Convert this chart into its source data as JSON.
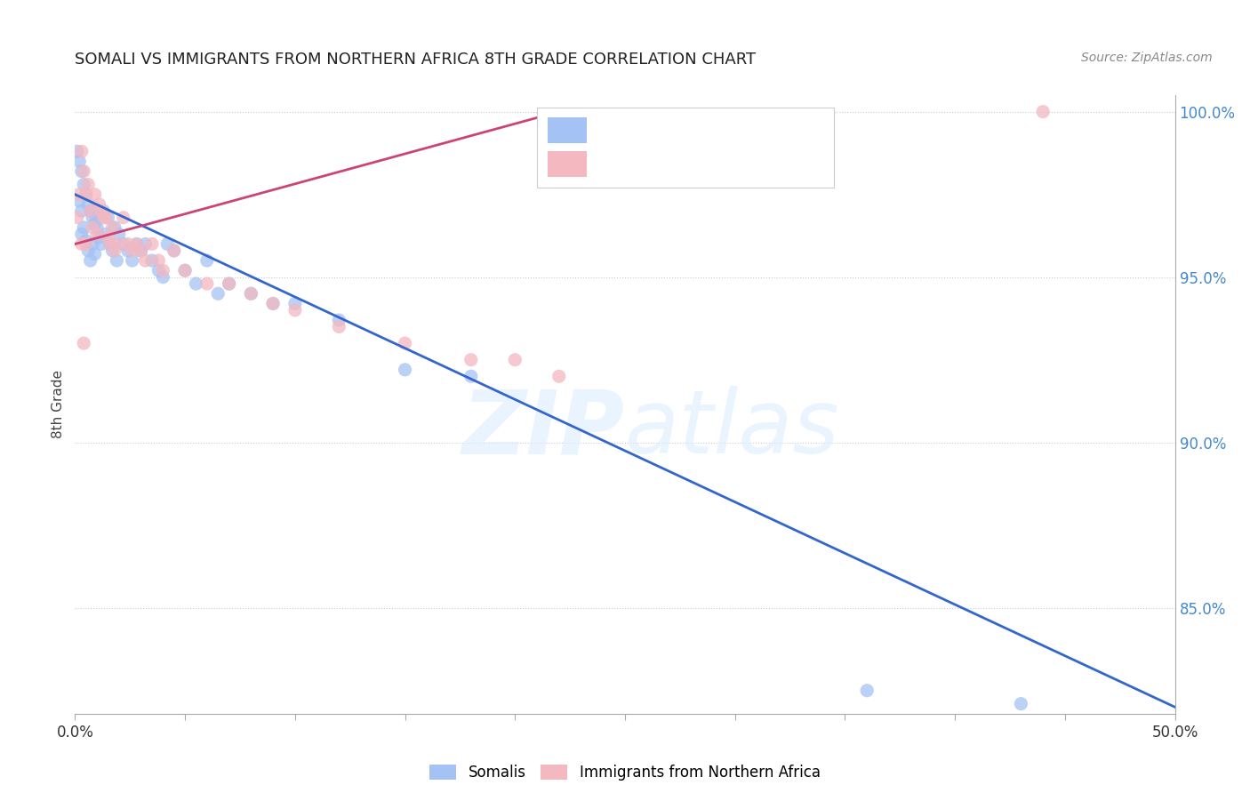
{
  "title": "SOMALI VS IMMIGRANTS FROM NORTHERN AFRICA 8TH GRADE CORRELATION CHART",
  "source": "Source: ZipAtlas.com",
  "ylabel": "8th Grade",
  "legend_labels": [
    "Somalis",
    "Immigrants from Northern Africa"
  ],
  "blue_color": "#a4c2f4",
  "pink_color": "#f4b8c1",
  "blue_line_color": "#3366cc",
  "pink_line_color": "#cc4477",
  "xlim": [
    0.0,
    0.5
  ],
  "ylim": [
    0.818,
    1.005
  ],
  "right_yticks": [
    1.0,
    0.95,
    0.9,
    0.85
  ],
  "right_ytick_labels": [
    "100.0%",
    "95.0%",
    "90.0%",
    "85.0%"
  ],
  "blue_scatter_x": [
    0.001,
    0.002,
    0.002,
    0.003,
    0.003,
    0.003,
    0.004,
    0.004,
    0.005,
    0.005,
    0.006,
    0.006,
    0.007,
    0.007,
    0.008,
    0.008,
    0.009,
    0.009,
    0.01,
    0.01,
    0.011,
    0.012,
    0.013,
    0.014,
    0.015,
    0.016,
    0.017,
    0.018,
    0.019,
    0.02,
    0.022,
    0.024,
    0.026,
    0.028,
    0.03,
    0.032,
    0.035,
    0.038,
    0.04,
    0.042,
    0.045,
    0.05,
    0.055,
    0.06,
    0.065,
    0.07,
    0.08,
    0.09,
    0.1,
    0.12,
    0.15,
    0.18,
    0.36,
    0.43
  ],
  "blue_scatter_y": [
    0.988,
    0.985,
    0.973,
    0.982,
    0.97,
    0.963,
    0.978,
    0.965,
    0.975,
    0.961,
    0.972,
    0.958,
    0.97,
    0.955,
    0.968,
    0.96,
    0.966,
    0.957,
    0.965,
    0.968,
    0.962,
    0.96,
    0.97,
    0.963,
    0.968,
    0.96,
    0.958,
    0.965,
    0.955,
    0.963,
    0.96,
    0.958,
    0.955,
    0.96,
    0.958,
    0.96,
    0.955,
    0.952,
    0.95,
    0.96,
    0.958,
    0.952,
    0.948,
    0.955,
    0.945,
    0.948,
    0.945,
    0.942,
    0.942,
    0.937,
    0.922,
    0.92,
    0.825,
    0.821
  ],
  "pink_scatter_x": [
    0.001,
    0.002,
    0.003,
    0.003,
    0.004,
    0.005,
    0.005,
    0.006,
    0.007,
    0.008,
    0.009,
    0.01,
    0.011,
    0.012,
    0.013,
    0.014,
    0.015,
    0.016,
    0.017,
    0.018,
    0.02,
    0.022,
    0.024,
    0.026,
    0.028,
    0.03,
    0.032,
    0.035,
    0.038,
    0.04,
    0.045,
    0.05,
    0.06,
    0.07,
    0.08,
    0.09,
    0.1,
    0.12,
    0.15,
    0.18,
    0.2,
    0.22,
    0.44,
    0.004
  ],
  "pink_scatter_y": [
    0.968,
    0.975,
    0.988,
    0.96,
    0.982,
    0.975,
    0.96,
    0.978,
    0.97,
    0.965,
    0.975,
    0.963,
    0.972,
    0.97,
    0.968,
    0.968,
    0.962,
    0.96,
    0.965,
    0.958,
    0.96,
    0.968,
    0.96,
    0.958,
    0.96,
    0.958,
    0.955,
    0.96,
    0.955,
    0.952,
    0.958,
    0.952,
    0.948,
    0.948,
    0.945,
    0.942,
    0.94,
    0.935,
    0.93,
    0.925,
    0.925,
    0.92,
    1.0,
    0.93
  ],
  "blue_trend_x": [
    0.0,
    0.5
  ],
  "blue_trend_y": [
    0.975,
    0.82
  ],
  "pink_trend_x": [
    0.0,
    0.22
  ],
  "pink_trend_y": [
    0.96,
    1.0
  ]
}
